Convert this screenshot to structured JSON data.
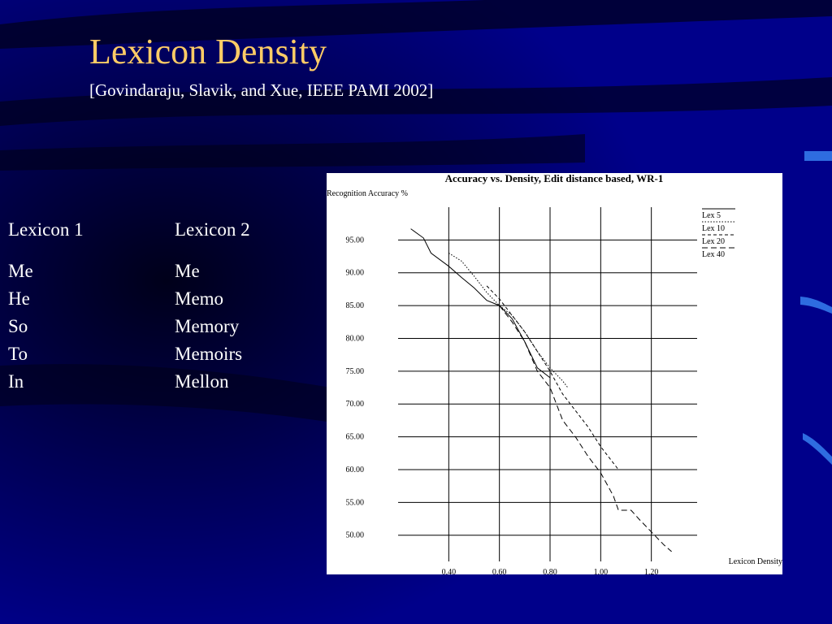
{
  "slide": {
    "title": "Lexicon Density",
    "citation": "[Govindaraju, Slavik, and Xue, IEEE PAMI 2002]",
    "colors": {
      "background": "#00008a",
      "title": "#ffcc66",
      "text": "#ffffff"
    }
  },
  "lexicons": [
    {
      "heading": "Lexicon 1",
      "words": [
        "Me",
        "He",
        "So",
        "To",
        "In"
      ]
    },
    {
      "heading": "Lexicon 2",
      "words": [
        "Me",
        "Memo",
        "Memory",
        "Memoirs",
        "Mellon"
      ]
    }
  ],
  "chart_data": {
    "type": "line",
    "title": "Accuracy vs. Density, Edit distance based, WR-1",
    "ylabel": "Recognition Accuracy %",
    "xlabel": "Lexicon Density",
    "xlim": [
      0.2,
      1.4
    ],
    "ylim": [
      46.0,
      100.0
    ],
    "x_ticks": [
      "0.40",
      "0.60",
      "0.80",
      "1.00",
      "1.20"
    ],
    "y_ticks": [
      "50.00",
      "55.00",
      "60.00",
      "65.00",
      "70.00",
      "75.00",
      "80.00",
      "85.00",
      "90.00",
      "95.00"
    ],
    "grid": true,
    "legend_position": "top-right",
    "series": [
      {
        "name": "Lex 5",
        "style": "solid",
        "x": [
          0.25,
          0.3,
          0.33,
          0.4,
          0.45,
          0.5,
          0.55,
          0.6,
          0.65,
          0.7,
          0.75,
          0.8
        ],
        "y": [
          96.7,
          95.3,
          93.0,
          91.0,
          89.3,
          87.7,
          85.8,
          85.0,
          83.0,
          79.5,
          75.5,
          74.0
        ]
      },
      {
        "name": "Lex 10",
        "style": "dotted",
        "x": [
          0.4,
          0.45,
          0.5,
          0.55,
          0.6,
          0.65,
          0.7,
          0.75,
          0.8,
          0.85,
          0.87
        ],
        "y": [
          93.0,
          91.8,
          89.5,
          87.0,
          85.0,
          83.5,
          81.0,
          78.0,
          75.5,
          73.5,
          72.5
        ]
      },
      {
        "name": "Lex 20",
        "style": "dashed",
        "x": [
          0.55,
          0.6,
          0.65,
          0.7,
          0.75,
          0.8,
          0.85,
          0.9,
          0.95,
          1.0,
          1.05,
          1.07
        ],
        "y": [
          88.0,
          86.0,
          83.5,
          81.0,
          78.0,
          75.0,
          71.5,
          69.0,
          66.5,
          63.5,
          61.0,
          60.0
        ]
      },
      {
        "name": "Lex 40",
        "style": "longdash",
        "x": [
          0.6,
          0.65,
          0.7,
          0.75,
          0.8,
          0.85,
          0.9,
          0.95,
          1.0,
          1.05,
          1.07,
          1.12,
          1.15,
          1.2,
          1.25,
          1.28
        ],
        "y": [
          85.0,
          82.5,
          79.5,
          75.0,
          72.5,
          67.5,
          65.0,
          62.0,
          59.5,
          56.0,
          53.8,
          53.8,
          52.5,
          50.5,
          48.5,
          47.5
        ]
      }
    ]
  }
}
